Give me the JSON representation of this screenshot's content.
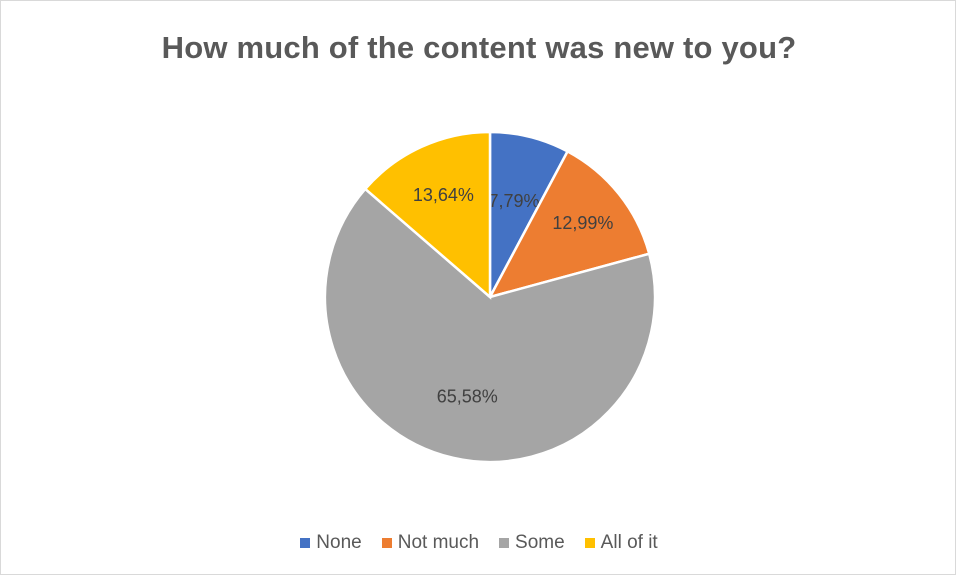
{
  "chart_data": {
    "type": "pie",
    "title": "How much of the content was new to you?",
    "categories": [
      "None",
      "Not much",
      "Some",
      "All of it"
    ],
    "values": [
      7.79,
      12.99,
      65.58,
      13.64
    ],
    "labels": [
      "7,79%",
      "12,99%",
      "65,58%",
      "13,64%"
    ],
    "colors": [
      "#4472C4",
      "#ED7D31",
      "#A5A5A5",
      "#FFC000"
    ],
    "legend": "bottom"
  }
}
